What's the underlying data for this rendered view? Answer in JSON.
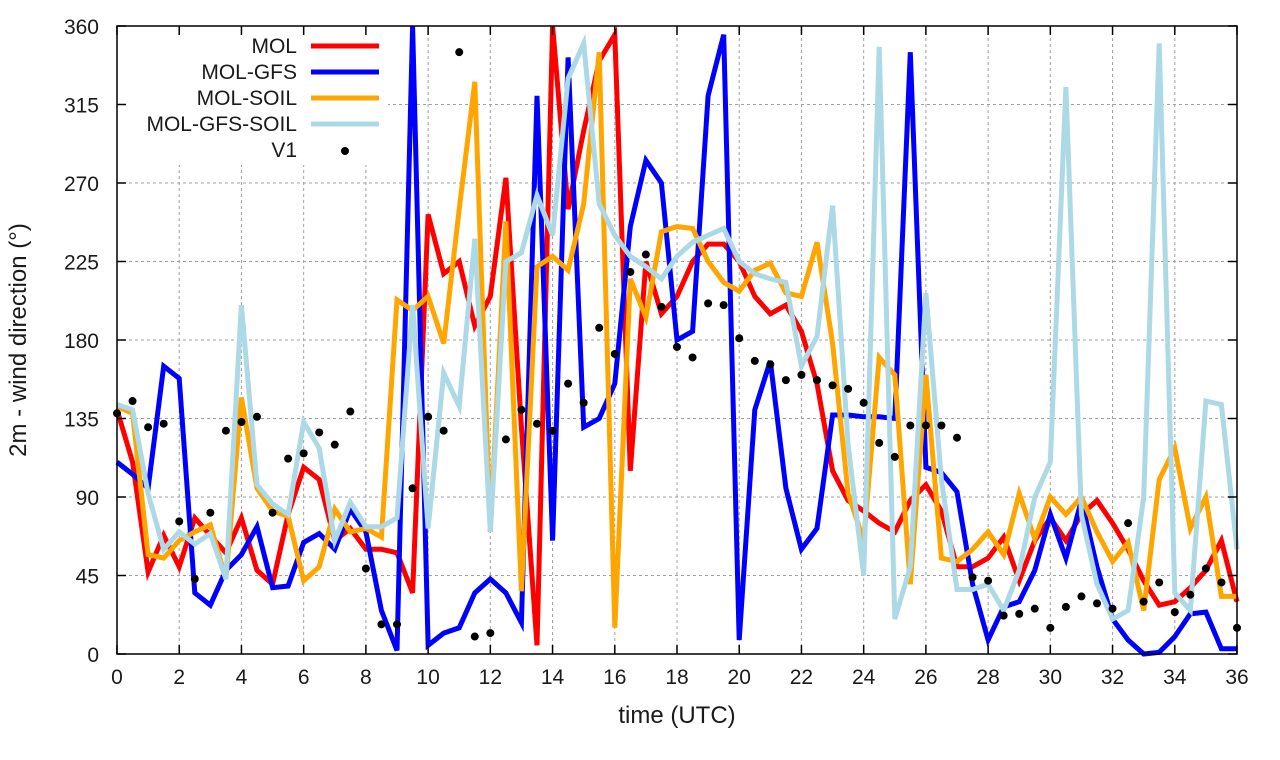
{
  "chart_data": {
    "type": "line",
    "title": "",
    "xlabel": "time (UTC)",
    "ylabel": "2m - wind direction (°)",
    "xlim": [
      0,
      36
    ],
    "ylim": [
      0,
      360
    ],
    "grid": true,
    "legend_position": "top-left",
    "x_ticks": [
      "0",
      "2",
      "4",
      "6",
      "8",
      "10",
      "12",
      "14",
      "16",
      "18",
      "20",
      "22",
      "24",
      "26",
      "28",
      "30",
      "32",
      "34",
      "36"
    ],
    "y_ticks": [
      "0",
      "45",
      "90",
      "135",
      "180",
      "225",
      "270",
      "315",
      "360"
    ],
    "x_step": 0.5,
    "series": [
      {
        "name": "MOL",
        "color": "#ff0000",
        "style": "line",
        "values": [
          140,
          110,
          47,
          68,
          50,
          78,
          68,
          58,
          78,
          48,
          40,
          80,
          107,
          100,
          65,
          72,
          60,
          60,
          58,
          35,
          252,
          218,
          225,
          188,
          205,
          273,
          130,
          5,
          360,
          255,
          300,
          340,
          355,
          105,
          225,
          195,
          205,
          225,
          235,
          235,
          225,
          205,
          195,
          200,
          185,
          155,
          105,
          88,
          82,
          75,
          70,
          88,
          97,
          82,
          50,
          50,
          55,
          67,
          42,
          65,
          78,
          65,
          80,
          88,
          75,
          60,
          42,
          28,
          30,
          38,
          48,
          65,
          30
        ]
      },
      {
        "name": "MOL-GFS",
        "color": "#0000ff",
        "style": "line",
        "values": [
          110,
          103,
          95,
          165,
          158,
          35,
          28,
          48,
          57,
          73,
          38,
          39,
          64,
          69,
          60,
          83,
          70,
          25,
          2,
          360,
          5,
          12,
          15,
          35,
          43,
          35,
          18,
          320,
          65,
          342,
          130,
          135,
          155,
          245,
          283,
          270,
          180,
          185,
          320,
          355,
          8,
          140,
          168,
          95,
          60,
          72,
          137,
          137,
          136,
          136,
          135,
          345,
          107,
          104,
          93,
          40,
          8,
          27,
          30,
          48,
          80,
          55,
          88,
          50,
          20,
          8,
          0,
          1,
          10,
          23,
          24,
          3,
          3
        ]
      },
      {
        "name": "MOL-SOIL",
        "color": "#ffa500",
        "style": "line",
        "values": [
          142,
          138,
          57,
          55,
          65,
          70,
          74,
          43,
          147,
          95,
          82,
          79,
          42,
          50,
          83,
          70,
          72,
          67,
          203,
          197,
          205,
          178,
          255,
          328,
          70,
          248,
          36,
          222,
          228,
          220,
          258,
          345,
          15,
          215,
          193,
          242,
          245,
          244,
          225,
          213,
          208,
          220,
          224,
          207,
          205,
          236,
          178,
          92,
          65,
          170,
          160,
          40,
          160,
          55,
          53,
          60,
          70,
          57,
          92,
          66,
          90,
          80,
          90,
          70,
          53,
          64,
          25,
          100,
          118,
          72,
          90,
          33,
          33
        ]
      },
      {
        "name": "MOL-GFS-SOIL",
        "color": "#add8e6",
        "style": "line",
        "values": [
          143,
          140,
          92,
          60,
          70,
          63,
          69,
          43,
          200,
          97,
          86,
          80,
          133,
          118,
          65,
          87,
          73,
          73,
          78,
          200,
          72,
          161,
          142,
          238,
          70,
          225,
          230,
          263,
          240,
          330,
          350,
          258,
          240,
          228,
          222,
          215,
          228,
          236,
          240,
          244,
          225,
          218,
          215,
          213,
          165,
          182,
          257,
          120,
          45,
          348,
          20,
          50,
          207,
          100,
          37,
          37,
          40,
          25,
          48,
          90,
          110,
          325,
          80,
          40,
          20,
          25,
          90,
          350,
          35,
          25,
          145,
          143,
          60
        ]
      },
      {
        "name": "V1",
        "color": "#000000",
        "style": "points",
        "values": [
          138,
          145,
          130,
          132,
          76,
          43,
          81,
          128,
          133,
          136,
          81,
          112,
          115,
          127,
          120,
          139,
          49,
          17,
          17,
          95,
          136,
          128,
          345,
          10,
          12,
          123,
          140,
          132,
          128,
          155,
          144,
          187,
          172,
          219,
          229,
          199,
          176,
          170,
          201,
          200,
          181,
          168,
          166,
          157,
          160,
          157,
          154,
          152,
          144,
          121,
          113,
          131,
          131,
          131,
          124,
          44,
          42,
          22,
          23,
          26,
          15,
          27,
          33,
          29,
          26,
          75,
          30,
          41,
          24,
          34,
          49,
          41,
          15
        ]
      }
    ]
  }
}
